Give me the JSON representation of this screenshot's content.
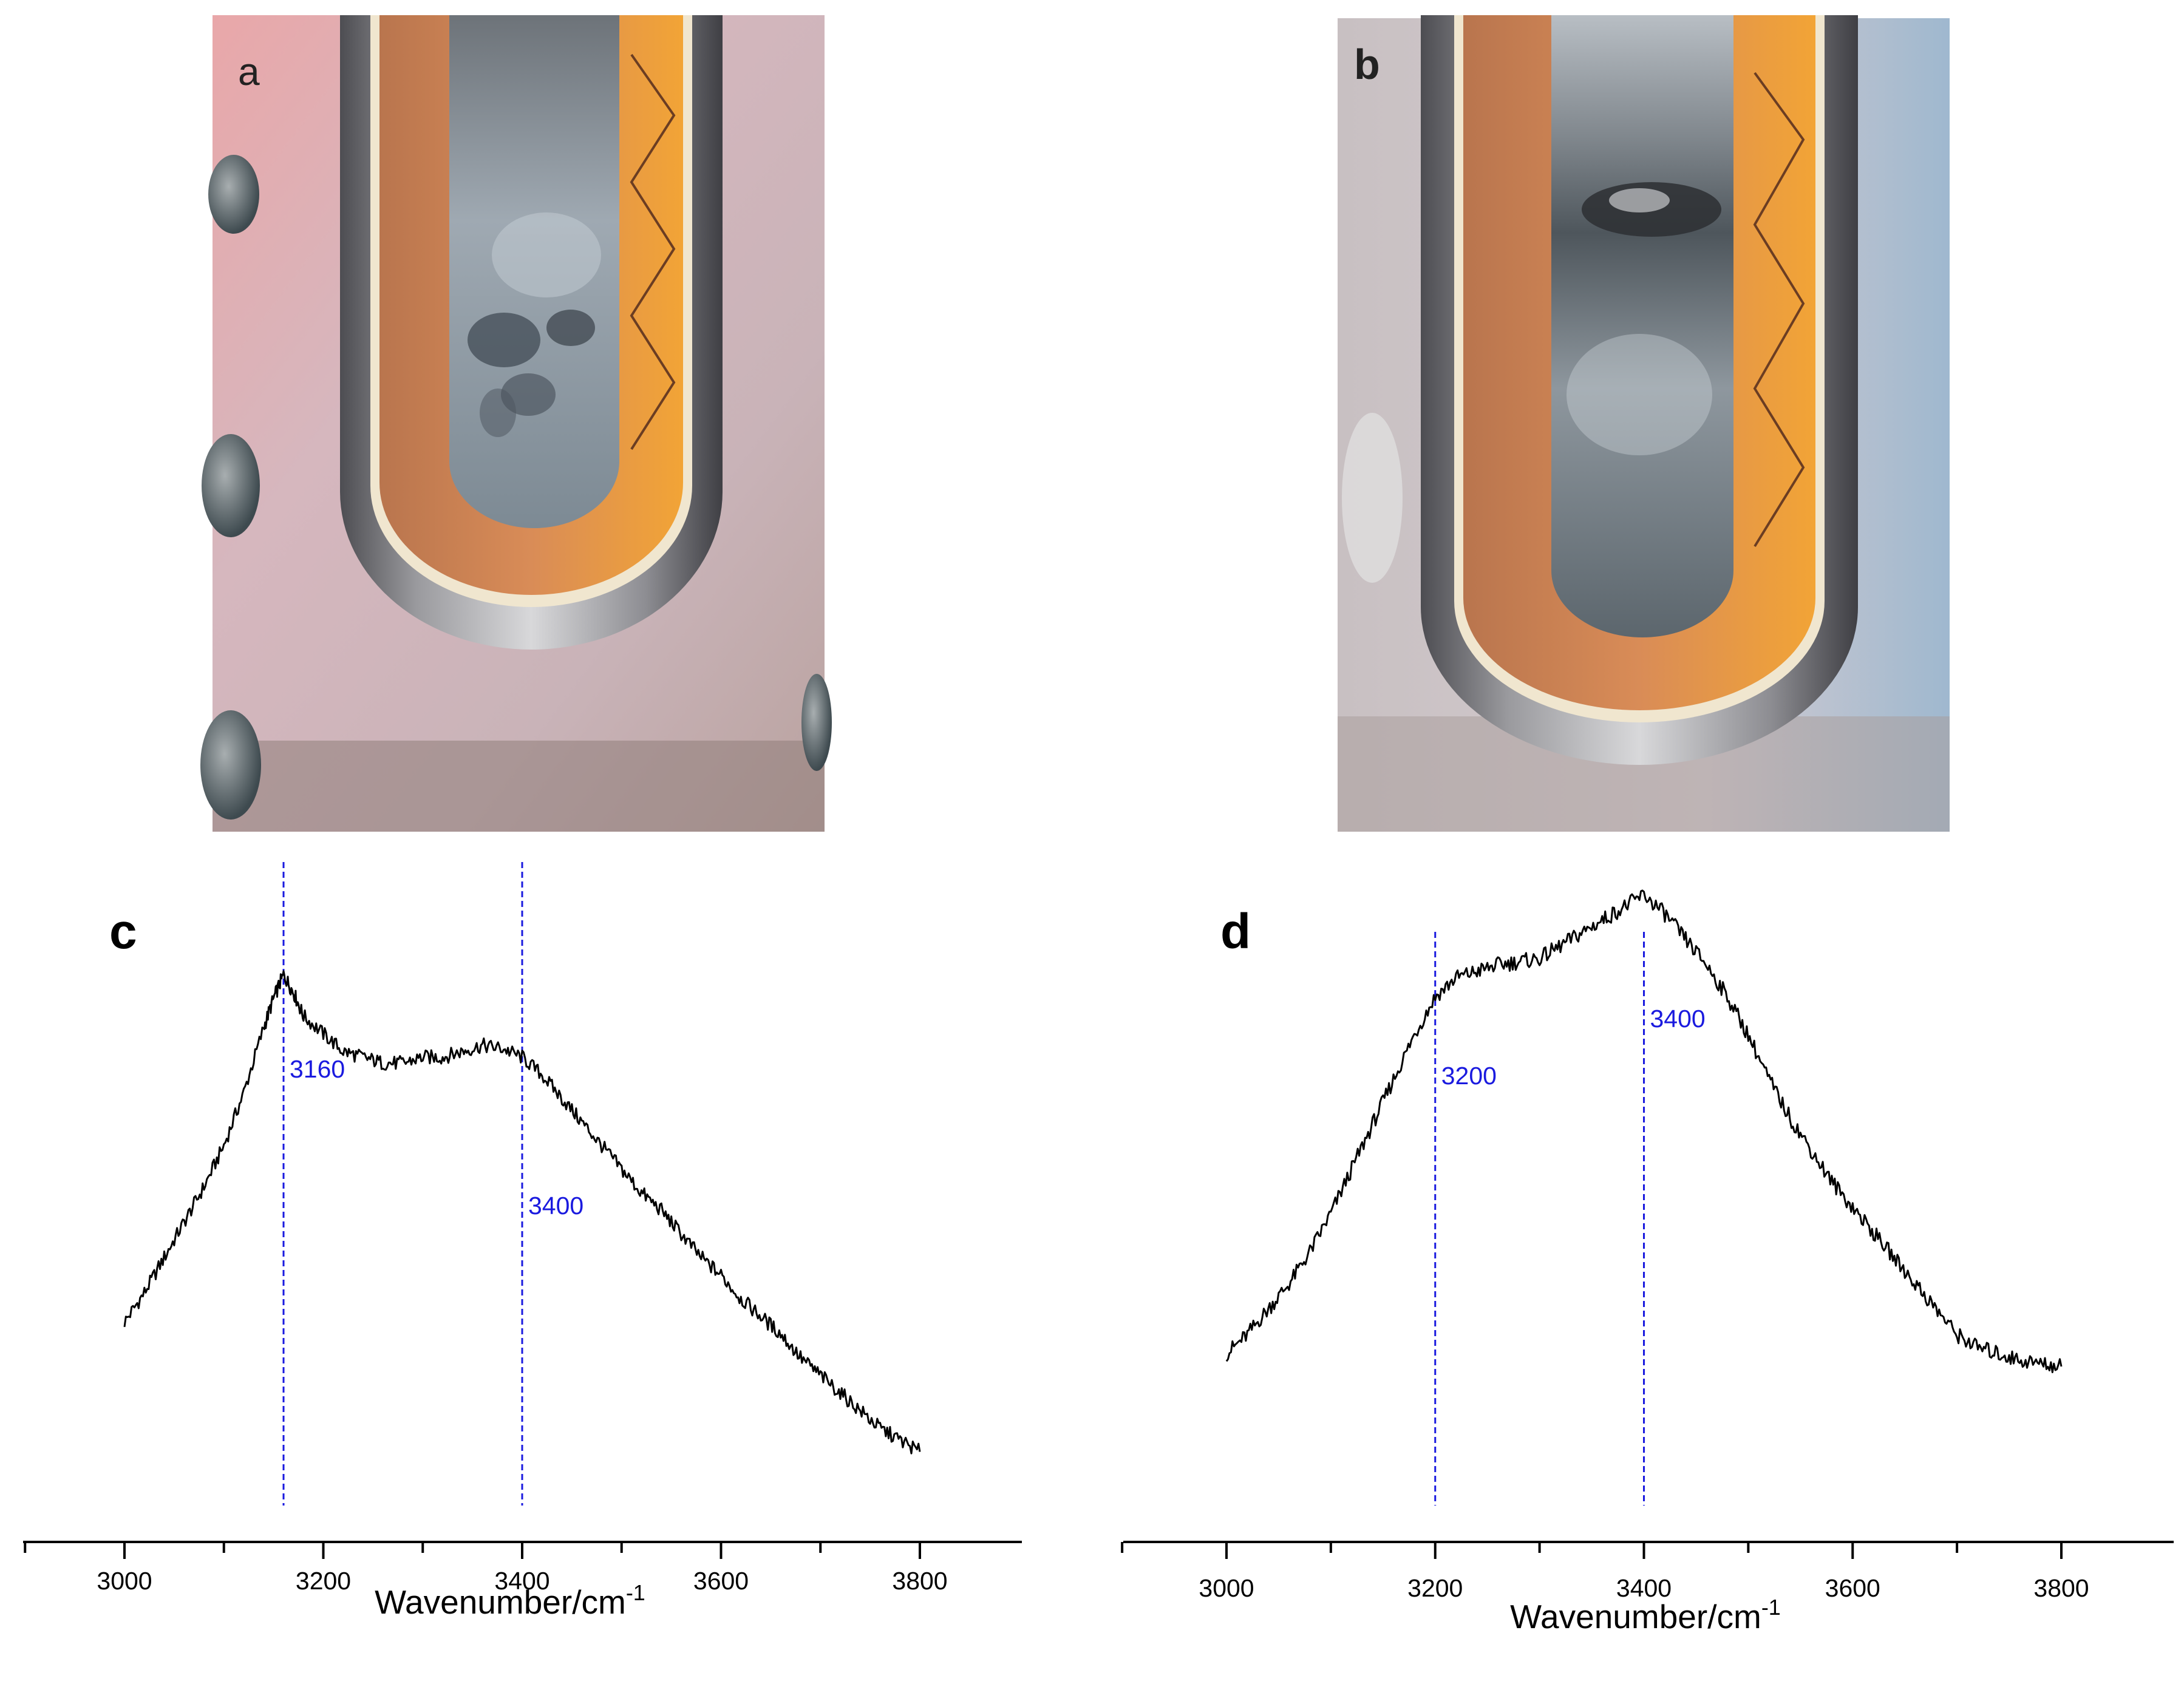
{
  "photos": [
    {
      "label": "a"
    },
    {
      "label": "b"
    }
  ],
  "chart_data": [
    {
      "type": "line",
      "panel": "c",
      "xlabel": "Wavenumber/cm",
      "xlabel_superscript": "-1",
      "xlim": [
        2900,
        3820
      ],
      "xticks": [
        3000,
        3200,
        3400,
        3600,
        3800
      ],
      "ylim": [
        0,
        1
      ],
      "y_axis_shown": false,
      "reference_lines": [
        {
          "x": 3160,
          "label": "3160"
        },
        {
          "x": 3400,
          "label": "3400"
        }
      ],
      "series": [
        {
          "points": [
            [
              3000,
              0.27
            ],
            [
              3020,
              0.32
            ],
            [
              3040,
              0.38
            ],
            [
              3060,
              0.44
            ],
            [
              3080,
              0.5
            ],
            [
              3100,
              0.57
            ],
            [
              3120,
              0.66
            ],
            [
              3140,
              0.77
            ],
            [
              3150,
              0.82
            ],
            [
              3160,
              0.86
            ],
            [
              3170,
              0.83
            ],
            [
              3180,
              0.79
            ],
            [
              3200,
              0.76
            ],
            [
              3220,
              0.73
            ],
            [
              3240,
              0.72
            ],
            [
              3260,
              0.71
            ],
            [
              3280,
              0.71
            ],
            [
              3300,
              0.72
            ],
            [
              3320,
              0.72
            ],
            [
              3340,
              0.73
            ],
            [
              3360,
              0.74
            ],
            [
              3380,
              0.735
            ],
            [
              3400,
              0.72
            ],
            [
              3420,
              0.69
            ],
            [
              3440,
              0.65
            ],
            [
              3460,
              0.61
            ],
            [
              3480,
              0.57
            ],
            [
              3500,
              0.53
            ],
            [
              3520,
              0.49
            ],
            [
              3540,
              0.46
            ],
            [
              3560,
              0.42
            ],
            [
              3580,
              0.38
            ],
            [
              3600,
              0.35
            ],
            [
              3620,
              0.31
            ],
            [
              3640,
              0.28
            ],
            [
              3660,
              0.25
            ],
            [
              3680,
              0.21
            ],
            [
              3700,
              0.18
            ],
            [
              3720,
              0.15
            ],
            [
              3740,
              0.12
            ],
            [
              3760,
              0.09
            ],
            [
              3780,
              0.07
            ],
            [
              3800,
              0.05
            ]
          ]
        }
      ]
    },
    {
      "type": "line",
      "panel": "d",
      "xlabel": "Wavenumber/cm",
      "xlabel_superscript": "-1",
      "xlim": [
        2900,
        3820
      ],
      "xticks": [
        3000,
        3200,
        3400,
        3600,
        3800
      ],
      "ylim": [
        0,
        1
      ],
      "y_axis_shown": false,
      "reference_lines": [
        {
          "x": 3200,
          "label": "3200"
        },
        {
          "x": 3400,
          "label": "3400"
        }
      ],
      "series": [
        {
          "points": [
            [
              3000,
              0.2
            ],
            [
              3020,
              0.23
            ],
            [
              3040,
              0.27
            ],
            [
              3060,
              0.31
            ],
            [
              3080,
              0.36
            ],
            [
              3100,
              0.42
            ],
            [
              3120,
              0.49
            ],
            [
              3140,
              0.56
            ],
            [
              3160,
              0.63
            ],
            [
              3180,
              0.7
            ],
            [
              3200,
              0.76
            ],
            [
              3220,
              0.79
            ],
            [
              3240,
              0.8
            ],
            [
              3260,
              0.81
            ],
            [
              3280,
              0.815
            ],
            [
              3300,
              0.82
            ],
            [
              3320,
              0.84
            ],
            [
              3340,
              0.86
            ],
            [
              3360,
              0.88
            ],
            [
              3380,
              0.9
            ],
            [
              3400,
              0.92
            ],
            [
              3420,
              0.89
            ],
            [
              3440,
              0.85
            ],
            [
              3460,
              0.81
            ],
            [
              3480,
              0.76
            ],
            [
              3500,
              0.7
            ],
            [
              3520,
              0.63
            ],
            [
              3540,
              0.57
            ],
            [
              3560,
              0.52
            ],
            [
              3580,
              0.47
            ],
            [
              3600,
              0.43
            ],
            [
              3620,
              0.39
            ],
            [
              3640,
              0.35
            ],
            [
              3660,
              0.31
            ],
            [
              3680,
              0.27
            ],
            [
              3700,
              0.23
            ],
            [
              3720,
              0.21
            ],
            [
              3740,
              0.2
            ],
            [
              3760,
              0.19
            ],
            [
              3780,
              0.185
            ],
            [
              3800,
              0.18
            ]
          ]
        }
      ]
    }
  ]
}
